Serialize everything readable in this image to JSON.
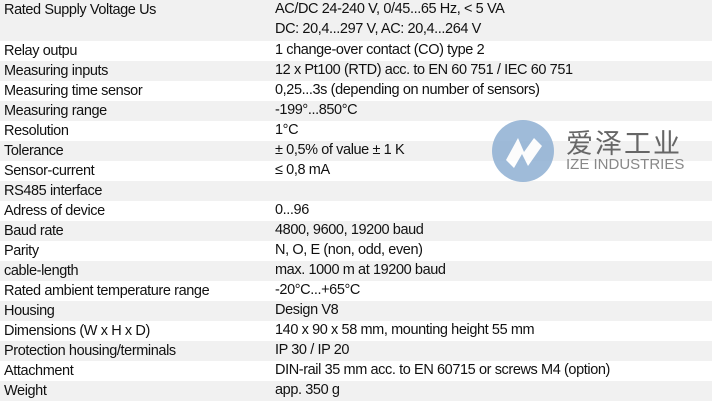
{
  "specs": [
    {
      "label": "Rated Supply Voltage Us",
      "value": "AC/DC 24-240 V, 0/45...65 Hz, < 5 VA",
      "value2": "DC: 20,4...297 V, AC: 20,4...264 V"
    },
    {
      "label": "Relay outpu",
      "value": "1 change-over contact (CO) type 2"
    },
    {
      "label": "Measuring inputs",
      "value": "12 x Pt100 (RTD) acc. to EN 60 751 / IEC 60 751"
    },
    {
      "label": "Measuring time sensor",
      "value": "0,25...3s (depending on number of sensors)"
    },
    {
      "label": "Measuring range",
      "value": "-199°...850°C"
    },
    {
      "label": "Resolution",
      "value": "1°C"
    },
    {
      "label": "Tolerance",
      "value": "± 0,5% of value ± 1 K"
    },
    {
      "label": "Sensor-current",
      "value": "≤ 0,8 mA"
    },
    {
      "label": "RS485 interface",
      "value": ""
    },
    {
      "label": "Adress of device",
      "value": "0...96"
    },
    {
      "label": "Baud rate",
      "value": "4800, 9600, 19200 baud"
    },
    {
      "label": "Parity",
      "value": "N, O, E (non, odd, even)"
    },
    {
      "label": "cable-length",
      "value": "max. 1000 m at 19200 baud"
    },
    {
      "label": "Rated ambient temperature range",
      "value": "-20°C...+65°C"
    },
    {
      "label": "Housing",
      "value": "Design V8"
    },
    {
      "label": "Dimensions (W x H x D)",
      "value": "140 x 90 x 58 mm, mounting height 55 mm"
    },
    {
      "label": "Protection housing/terminals",
      "value": "IP 30 / IP 20"
    },
    {
      "label": "Attachment",
      "value": "DIN-rail 35 mm acc. to EN 60715 or screws M4 (option)"
    },
    {
      "label": "Weight",
      "value": "app. 350 g"
    }
  ],
  "watermark": {
    "cn": "爱泽工业",
    "en": "IZE INDUSTRIES",
    "color": "#8fb0d3"
  },
  "colors": {
    "stripe": "#f1f1f1"
  }
}
